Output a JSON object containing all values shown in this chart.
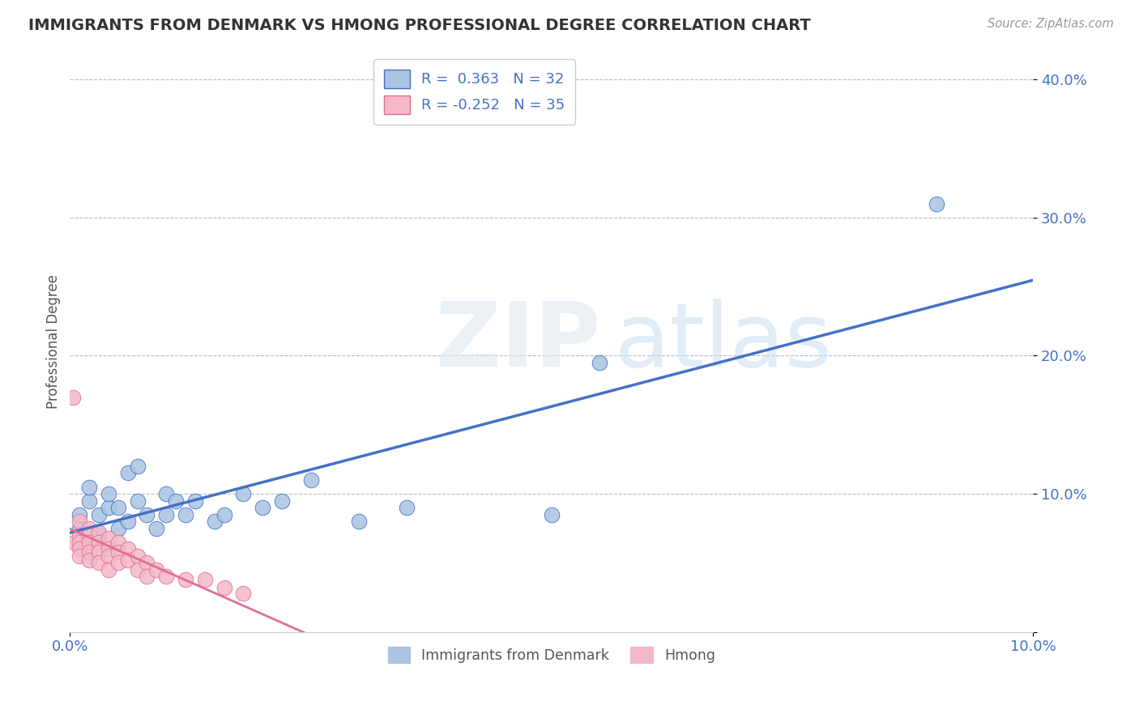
{
  "title": "IMMIGRANTS FROM DENMARK VS HMONG PROFESSIONAL DEGREE CORRELATION CHART",
  "source": "Source: ZipAtlas.com",
  "ylabel": "Professional Degree",
  "xlim": [
    0.0,
    0.1
  ],
  "ylim": [
    0.0,
    0.42
  ],
  "ytick_vals": [
    0.0,
    0.1,
    0.2,
    0.3,
    0.4
  ],
  "ytick_labels": [
    "",
    "10.0%",
    "20.0%",
    "30.0%",
    "40.0%"
  ],
  "xtick_vals": [
    0.0,
    0.1
  ],
  "xtick_labels": [
    "0.0%",
    "10.0%"
  ],
  "r_denmark": 0.363,
  "n_denmark": 32,
  "r_hmong": -0.252,
  "n_hmong": 35,
  "color_denmark": "#aac4e2",
  "color_hmong": "#f4b8c8",
  "line_color_denmark": "#4472c4",
  "line_color_hmong": "#e07090",
  "background_color": "#ffffff",
  "legend_label_denmark": "Immigrants from Denmark",
  "legend_label_hmong": "Hmong",
  "denmark_x": [
    0.001,
    0.001,
    0.002,
    0.002,
    0.003,
    0.003,
    0.004,
    0.004,
    0.005,
    0.005,
    0.006,
    0.006,
    0.007,
    0.007,
    0.008,
    0.009,
    0.01,
    0.01,
    0.011,
    0.012,
    0.013,
    0.015,
    0.016,
    0.018,
    0.02,
    0.022,
    0.025,
    0.03,
    0.035,
    0.05,
    0.055,
    0.09
  ],
  "denmark_y": [
    0.075,
    0.085,
    0.095,
    0.105,
    0.07,
    0.085,
    0.09,
    0.1,
    0.075,
    0.09,
    0.115,
    0.08,
    0.095,
    0.12,
    0.085,
    0.075,
    0.085,
    0.1,
    0.095,
    0.085,
    0.095,
    0.08,
    0.085,
    0.1,
    0.09,
    0.095,
    0.11,
    0.08,
    0.09,
    0.085,
    0.195,
    0.31
  ],
  "hmong_x": [
    0.0003,
    0.0005,
    0.001,
    0.001,
    0.001,
    0.001,
    0.001,
    0.002,
    0.002,
    0.002,
    0.002,
    0.002,
    0.003,
    0.003,
    0.003,
    0.003,
    0.004,
    0.004,
    0.004,
    0.004,
    0.005,
    0.005,
    0.005,
    0.006,
    0.006,
    0.007,
    0.007,
    0.008,
    0.008,
    0.009,
    0.01,
    0.012,
    0.014,
    0.016,
    0.018
  ],
  "hmong_y": [
    0.17,
    0.065,
    0.08,
    0.07,
    0.065,
    0.06,
    0.055,
    0.075,
    0.07,
    0.065,
    0.058,
    0.052,
    0.072,
    0.065,
    0.058,
    0.05,
    0.068,
    0.06,
    0.055,
    0.045,
    0.065,
    0.058,
    0.05,
    0.06,
    0.052,
    0.055,
    0.045,
    0.05,
    0.04,
    0.045,
    0.04,
    0.038,
    0.038,
    0.032,
    0.028
  ]
}
